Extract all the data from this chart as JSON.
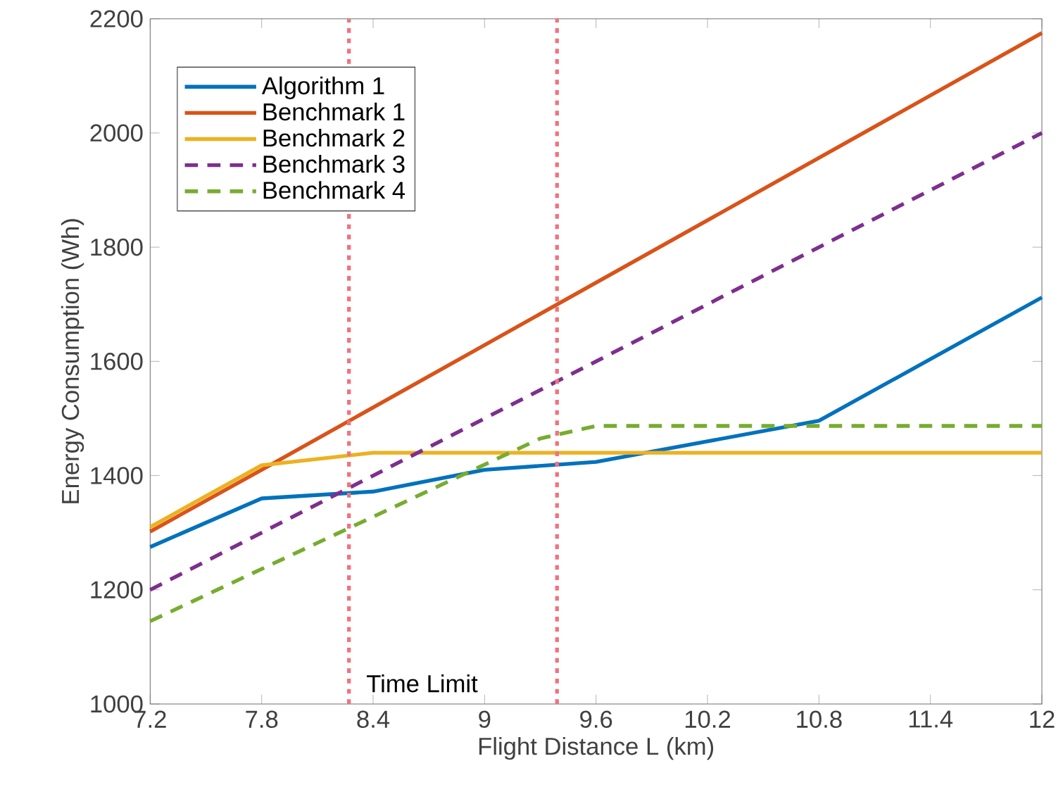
{
  "chart_data": {
    "type": "line",
    "xlabel": "Flight Distance L (km)",
    "ylabel": "Energy Consumption (Wh)",
    "xlim": [
      7.2,
      12
    ],
    "xticks": [
      7.2,
      7.8,
      8.4,
      9,
      9.6,
      10.2,
      10.8,
      11.4,
      12
    ],
    "ylim": [
      1000,
      2200
    ],
    "yticks": [
      1000,
      1200,
      1400,
      1600,
      1800,
      2000,
      2200
    ],
    "grid": false,
    "legend": "top left",
    "series": [
      {
        "name": "Algorithm 1",
        "color": "#0072bd",
        "line_style": "solid",
        "x": [
          7.2,
          7.8,
          8.4,
          9,
          9.6,
          10.2,
          10.8,
          12
        ],
        "values": [
          1275,
          1360,
          1372,
          1410,
          1424,
          1460,
          1496,
          1712
        ]
      },
      {
        "name": "Benchmark 1",
        "color": "#d95319",
        "line_style": "solid",
        "x": [
          7.2,
          7.8,
          12
        ],
        "values": [
          1302,
          1410,
          2175
        ]
      },
      {
        "name": "Benchmark 2",
        "color": "#edb120",
        "line_style": "solid",
        "x": [
          7.2,
          7.8,
          8.4,
          12
        ],
        "values": [
          1310,
          1418,
          1440,
          1440
        ]
      },
      {
        "name": "Benchmark 3",
        "color": "#7e2f8e",
        "line_style": "dashed",
        "x": [
          7.2,
          12
        ],
        "values": [
          1200,
          2000
        ]
      },
      {
        "name": "Benchmark 4",
        "color": "#77ac30",
        "line_style": "dashed",
        "x": [
          7.2,
          9.3,
          9.6,
          12
        ],
        "values": [
          1145,
          1465,
          1487,
          1487
        ]
      }
    ],
    "ref_lines": [
      {
        "axis": "x",
        "value": 8.27,
        "color": "#f0737c",
        "line_style": "dotted",
        "label": "Time Limit"
      },
      {
        "axis": "x",
        "value": 9.39,
        "color": "#f0737c",
        "line_style": "dotted"
      }
    ]
  }
}
